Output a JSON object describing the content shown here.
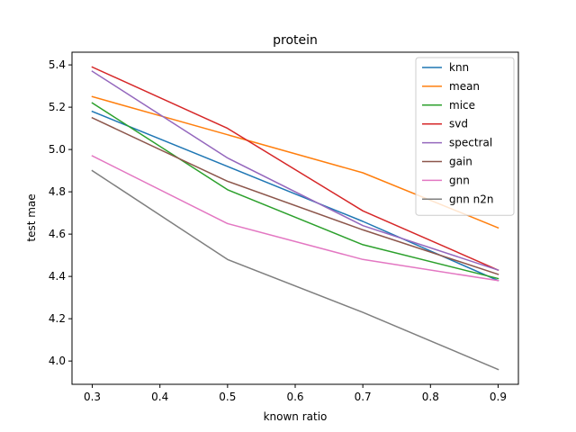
{
  "chart_data": {
    "type": "line",
    "title": "protein",
    "xlabel": "known ratio",
    "ylabel": "test mae",
    "x": [
      0.3,
      0.5,
      0.7,
      0.9
    ],
    "xlim": [
      0.27,
      0.93
    ],
    "ylim": [
      3.89,
      5.46
    ],
    "xticks": [
      "0.3",
      "0.4",
      "0.5",
      "0.6",
      "0.7",
      "0.8",
      "0.9"
    ],
    "yticks": [
      "4.0",
      "4.2",
      "4.4",
      "4.6",
      "4.8",
      "5.0",
      "5.2",
      "5.4"
    ],
    "grid": false,
    "legend_position": "top-right",
    "series": [
      {
        "name": "knn",
        "color": "#1f77b4",
        "values": [
          5.18,
          4.92,
          4.66,
          4.38
        ]
      },
      {
        "name": "mean",
        "color": "#ff7f0e",
        "values": [
          5.25,
          5.07,
          4.89,
          4.63
        ]
      },
      {
        "name": "mice",
        "color": "#2ca02c",
        "values": [
          5.22,
          4.81,
          4.55,
          4.39
        ]
      },
      {
        "name": "svd",
        "color": "#d62728",
        "values": [
          5.39,
          5.1,
          4.71,
          4.43
        ]
      },
      {
        "name": "spectral",
        "color": "#9467bd",
        "values": [
          5.37,
          4.96,
          4.64,
          4.43
        ]
      },
      {
        "name": "gain",
        "color": "#8c564b",
        "values": [
          5.15,
          4.85,
          4.62,
          4.41
        ]
      },
      {
        "name": "gnn",
        "color": "#e377c2",
        "values": [
          4.97,
          4.65,
          4.48,
          4.38
        ]
      },
      {
        "name": "gnn n2n",
        "color": "#7f7f7f",
        "values": [
          4.9,
          4.48,
          4.23,
          3.96
        ]
      }
    ]
  }
}
